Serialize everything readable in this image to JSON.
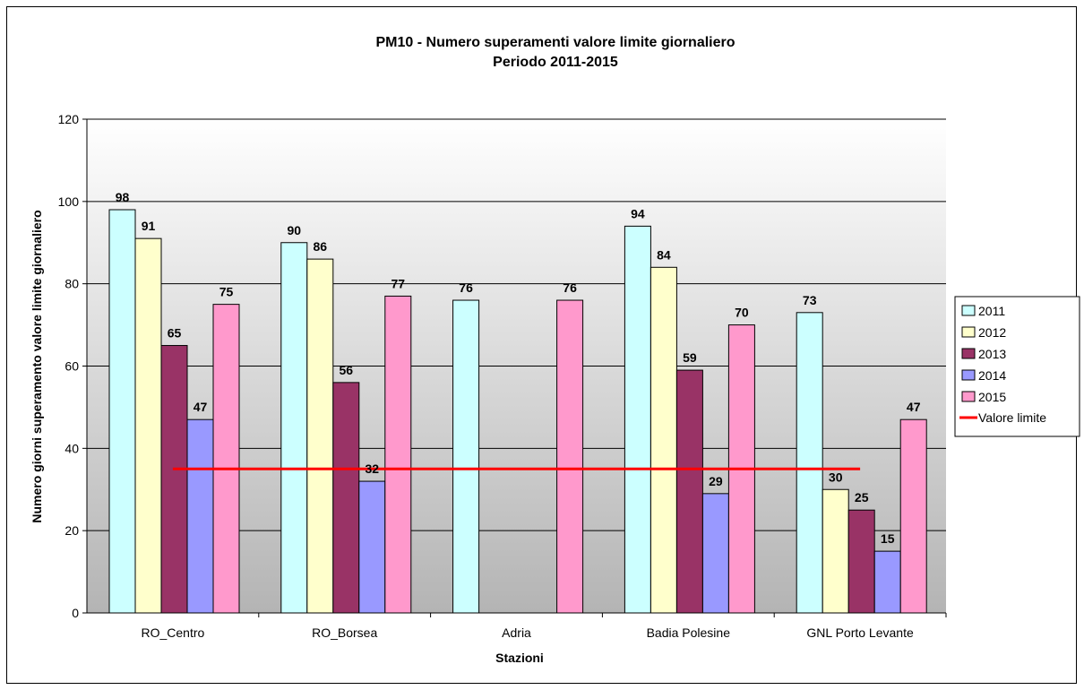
{
  "chart_data": {
    "type": "bar",
    "title": "PM10 - Numero superamenti valore limite giornaliero",
    "subtitle": "Periodo 2011-2015",
    "xlabel": "Stazioni",
    "ylabel": "Numero giorni superamento valore limite giornaliero",
    "ylim": [
      0,
      120
    ],
    "yticks": [
      0,
      20,
      40,
      60,
      80,
      100,
      120
    ],
    "categories": [
      "RO_Centro",
      "RO_Borsea",
      "Adria",
      "Badia Polesine",
      "GNL Porto Levante"
    ],
    "series": [
      {
        "name": "2011",
        "color": "#CCFFFF",
        "values": [
          98,
          90,
          76,
          94,
          73
        ]
      },
      {
        "name": "2012",
        "color": "#FFFFCC",
        "values": [
          91,
          86,
          null,
          84,
          30
        ]
      },
      {
        "name": "2013",
        "color": "#993366",
        "values": [
          65,
          56,
          null,
          59,
          25
        ]
      },
      {
        "name": "2014",
        "color": "#9999FF",
        "values": [
          47,
          32,
          null,
          29,
          15
        ]
      },
      {
        "name": "2015",
        "color": "#FF99CC",
        "values": [
          75,
          77,
          76,
          70,
          47
        ]
      }
    ],
    "limit_line": {
      "name": "Valore limite",
      "value": 35,
      "color": "#FF0000"
    },
    "grid": true,
    "legend": "right"
  }
}
